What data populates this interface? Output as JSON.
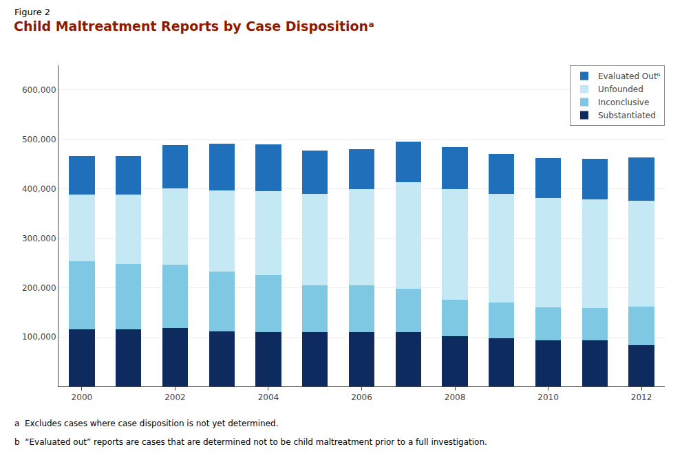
{
  "chart_data": {
    "type": "bar",
    "stacked": true,
    "title": "Child Maltreatment Reports by Case Dispositionᵃ",
    "annotations": [
      "Figure 2",
      "a  Excludes cases where case disposition is not yet determined.",
      "b  “Evaluated out” reports are cases that are determined not to be child maltreatment prior to a full investigation."
    ],
    "categories": [
      "2000",
      null,
      "2002",
      null,
      "2004",
      null,
      "2006",
      null,
      "2008",
      null,
      "2010",
      null,
      "2012"
    ],
    "series": [
      {
        "name": "Substantiated",
        "color": "#0d2b5e",
        "values": [
          115000,
          115000,
          118000,
          112000,
          110000,
          110000,
          110000,
          110000,
          102000,
          97000,
          93000,
          93000,
          83000
        ]
      },
      {
        "name": "Inconclusive",
        "color": "#7ec8e3",
        "values": [
          138000,
          133000,
          128000,
          120000,
          115000,
          95000,
          95000,
          88000,
          73000,
          73000,
          67000,
          65000,
          78000
        ]
      },
      {
        "name": "Unfounded",
        "color": "#c5e8f5",
        "values": [
          135000,
          140000,
          155000,
          165000,
          170000,
          185000,
          195000,
          215000,
          225000,
          220000,
          222000,
          220000,
          215000
        ]
      },
      {
        "name": "Evaluated Outᵇ",
        "color": "#1f6fba",
        "values": [
          78000,
          78000,
          88000,
          95000,
          95000,
          88000,
          80000,
          83000,
          85000,
          80000,
          80000,
          83000,
          88000
        ]
      }
    ],
    "ylim": [
      0,
      650000
    ],
    "yticks": [
      {
        "value": 100000,
        "label": "100,000"
      },
      {
        "value": 200000,
        "label": "200,000"
      },
      {
        "value": 300000,
        "label": "300,000"
      },
      {
        "value": 400000,
        "label": "400,000"
      },
      {
        "value": 500000,
        "label": "500,000"
      },
      {
        "value": 600000,
        "label": "600,000"
      }
    ],
    "grid": true,
    "legend": "upper right"
  }
}
